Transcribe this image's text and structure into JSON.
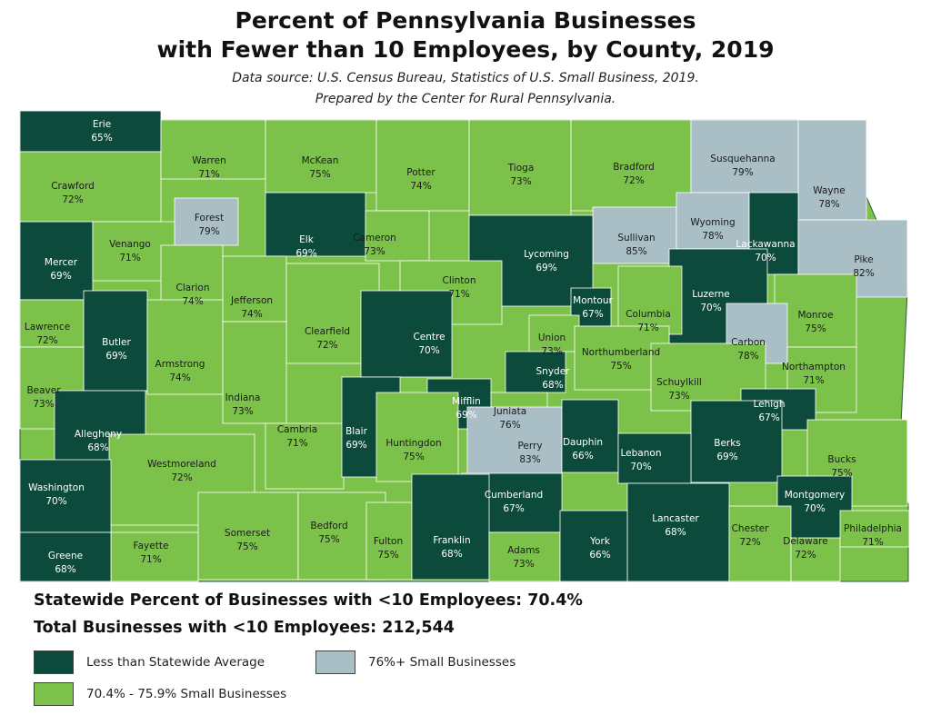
{
  "title_line1": "Percent of Pennsylvania Businesses",
  "title_line2": "with Fewer than 10 Employees, by County, 2019",
  "source_line1": "Data source: U.S. Census Bureau, Statistics of U.S. Small Business, 2019.",
  "source_line2": "Prepared by the Center for Rural Pennsylvania.",
  "statewide_line": "Statewide Percent of Businesses with <10 Employees: 70.4%",
  "total_line": "Total Businesses with <10 Employees: 212,544",
  "colors": {
    "below": "#0c4a3c",
    "mid": "#7cc24a",
    "high": "#a9bec5"
  },
  "legend": [
    {
      "label": "Less than Statewide Average",
      "cat": "below"
    },
    {
      "label": "76%+ Small Businesses",
      "cat": "high"
    },
    {
      "label": "70.4% - 75.9% Small Businesses",
      "cat": "mid"
    }
  ],
  "counties": [
    {
      "name": "Erie",
      "pct": "65%",
      "cat": "below"
    },
    {
      "name": "Crawford",
      "pct": "72%",
      "cat": "mid"
    },
    {
      "name": "Warren",
      "pct": "71%",
      "cat": "mid"
    },
    {
      "name": "McKean",
      "pct": "75%",
      "cat": "mid"
    },
    {
      "name": "Potter",
      "pct": "74%",
      "cat": "mid"
    },
    {
      "name": "Tioga",
      "pct": "73%",
      "cat": "mid"
    },
    {
      "name": "Bradford",
      "pct": "72%",
      "cat": "mid"
    },
    {
      "name": "Susquehanna",
      "pct": "79%",
      "cat": "high"
    },
    {
      "name": "Wayne",
      "pct": "78%",
      "cat": "high"
    },
    {
      "name": "Forest",
      "pct": "79%",
      "cat": "high"
    },
    {
      "name": "Elk",
      "pct": "69%",
      "cat": "below"
    },
    {
      "name": "Cameron",
      "pct": "73%",
      "cat": "mid"
    },
    {
      "name": "Sullivan",
      "pct": "85%",
      "cat": "high"
    },
    {
      "name": "Wyoming",
      "pct": "78%",
      "cat": "high"
    },
    {
      "name": "Lackawanna",
      "pct": "70%",
      "cat": "below"
    },
    {
      "name": "Pike",
      "pct": "82%",
      "cat": "high"
    },
    {
      "name": "Mercer",
      "pct": "69%",
      "cat": "below"
    },
    {
      "name": "Venango",
      "pct": "71%",
      "cat": "mid"
    },
    {
      "name": "Lycoming",
      "pct": "69%",
      "cat": "below"
    },
    {
      "name": "Clarion",
      "pct": "74%",
      "cat": "mid"
    },
    {
      "name": "Jefferson",
      "pct": "74%",
      "cat": "mid"
    },
    {
      "name": "Clinton",
      "pct": "71%",
      "cat": "mid"
    },
    {
      "name": "Luzerne",
      "pct": "70%",
      "cat": "below"
    },
    {
      "name": "Lawrence",
      "pct": "72%",
      "cat": "mid"
    },
    {
      "name": "Butler",
      "pct": "69%",
      "cat": "below"
    },
    {
      "name": "Clearfield",
      "pct": "72%",
      "cat": "mid"
    },
    {
      "name": "Centre",
      "pct": "70%",
      "cat": "below"
    },
    {
      "name": "Montour",
      "pct": "67%",
      "cat": "below"
    },
    {
      "name": "Columbia",
      "pct": "71%",
      "cat": "mid"
    },
    {
      "name": "Monroe",
      "pct": "75%",
      "cat": "mid"
    },
    {
      "name": "Union",
      "pct": "73%",
      "cat": "mid"
    },
    {
      "name": "Northumberland",
      "pct": "75%",
      "cat": "mid"
    },
    {
      "name": "Carbon",
      "pct": "78%",
      "cat": "high"
    },
    {
      "name": "Armstrong",
      "pct": "74%",
      "cat": "mid"
    },
    {
      "name": "Snyder",
      "pct": "68%",
      "cat": "below"
    },
    {
      "name": "Northampton",
      "pct": "71%",
      "cat": "mid"
    },
    {
      "name": "Beaver",
      "pct": "73%",
      "cat": "mid"
    },
    {
      "name": "Indiana",
      "pct": "73%",
      "cat": "mid"
    },
    {
      "name": "Mifflin",
      "pct": "69%",
      "cat": "below"
    },
    {
      "name": "Juniata",
      "pct": "76%",
      "cat": "mid"
    },
    {
      "name": "Schuylkill",
      "pct": "73%",
      "cat": "mid"
    },
    {
      "name": "Lehigh",
      "pct": "67%",
      "cat": "below"
    },
    {
      "name": "Allegheny",
      "pct": "68%",
      "cat": "below"
    },
    {
      "name": "Cambria",
      "pct": "71%",
      "cat": "mid"
    },
    {
      "name": "Blair",
      "pct": "69%",
      "cat": "below"
    },
    {
      "name": "Huntingdon",
      "pct": "75%",
      "cat": "mid"
    },
    {
      "name": "Perry",
      "pct": "83%",
      "cat": "high"
    },
    {
      "name": "Dauphin",
      "pct": "66%",
      "cat": "below"
    },
    {
      "name": "Berks",
      "pct": "69%",
      "cat": "below"
    },
    {
      "name": "Lebanon",
      "pct": "70%",
      "cat": "below"
    },
    {
      "name": "Westmoreland",
      "pct": "72%",
      "cat": "mid"
    },
    {
      "name": "Bucks",
      "pct": "75%",
      "cat": "mid"
    },
    {
      "name": "Washington",
      "pct": "70%",
      "cat": "below"
    },
    {
      "name": "Cumberland",
      "pct": "67%",
      "cat": "below"
    },
    {
      "name": "Montgomery",
      "pct": "70%",
      "cat": "below"
    },
    {
      "name": "Lancaster",
      "pct": "68%",
      "cat": "below"
    },
    {
      "name": "Somerset",
      "pct": "75%",
      "cat": "mid"
    },
    {
      "name": "Bedford",
      "pct": "75%",
      "cat": "mid"
    },
    {
      "name": "Fulton",
      "pct": "75%",
      "cat": "mid"
    },
    {
      "name": "Franklin",
      "pct": "68%",
      "cat": "below"
    },
    {
      "name": "Adams",
      "pct": "73%",
      "cat": "mid"
    },
    {
      "name": "York",
      "pct": "66%",
      "cat": "below"
    },
    {
      "name": "Chester",
      "pct": "72%",
      "cat": "mid"
    },
    {
      "name": "Delaware",
      "pct": "72%",
      "cat": "mid"
    },
    {
      "name": "Philadelphia",
      "pct": "71%",
      "cat": "mid"
    },
    {
      "name": "Fayette",
      "pct": "71%",
      "cat": "mid"
    },
    {
      "name": "Greene",
      "pct": "68%",
      "cat": "below"
    }
  ]
}
